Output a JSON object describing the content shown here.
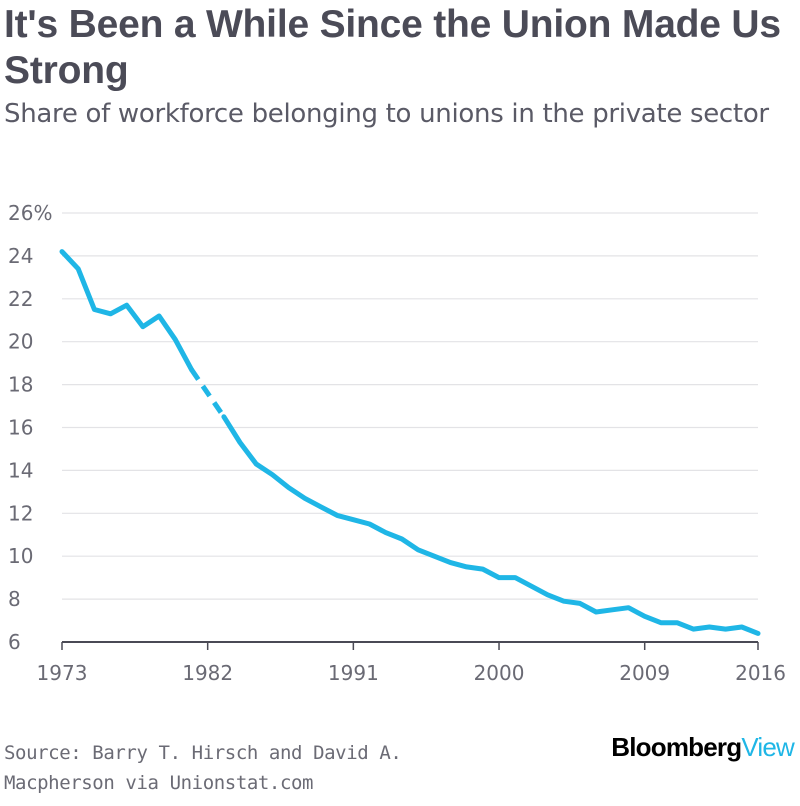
{
  "title": "It's Been a While Since the Union Made Us Strong",
  "subtitle": "Share of workforce belonging to unions in the private sector",
  "source": "Source: Barry T. Hirsch and David A. Macpherson via Unionstat.com",
  "logo": {
    "part1": "Bloomberg",
    "part2": "View"
  },
  "colors": {
    "line": "#1fb6e6",
    "grid": "#e3e3e6",
    "axis": "#4a4a55",
    "text": "#4b4b57"
  },
  "chart_data": {
    "type": "line",
    "title": "It's Been a While Since the Union Made Us Strong",
    "subtitle": "Share of workforce belonging to unions in the private sector",
    "xlim": [
      1973,
      2016
    ],
    "ylim": [
      6,
      26
    ],
    "x_ticks": [
      {
        "value": 1973,
        "label": "1973"
      },
      {
        "value": 1982,
        "label": "1982"
      },
      {
        "value": 1991,
        "label": "1991"
      },
      {
        "value": 2000,
        "label": "2000"
      },
      {
        "value": 2009,
        "label": "2009"
      },
      {
        "value": 2016,
        "label": "2016"
      }
    ],
    "y_ticks": [
      {
        "value": 26,
        "label": "26%"
      },
      {
        "value": 24,
        "label": "24"
      },
      {
        "value": 22,
        "label": "22"
      },
      {
        "value": 20,
        "label": "20"
      },
      {
        "value": 18,
        "label": "18"
      },
      {
        "value": 16,
        "label": "16"
      },
      {
        "value": 14,
        "label": "14"
      },
      {
        "value": 12,
        "label": "12"
      },
      {
        "value": 10,
        "label": "10"
      },
      {
        "value": 8,
        "label": "8"
      },
      {
        "value": 6,
        "label": "6"
      }
    ],
    "grid": true,
    "segments": [
      {
        "style": "solid",
        "points": [
          [
            1973,
            24.2
          ],
          [
            1974,
            23.4
          ],
          [
            1975,
            21.5
          ],
          [
            1976,
            21.3
          ],
          [
            1977,
            21.7
          ],
          [
            1978,
            20.7
          ],
          [
            1979,
            21.2
          ],
          [
            1980,
            20.1
          ],
          [
            1981,
            18.7
          ]
        ]
      },
      {
        "style": "dashed",
        "points": [
          [
            1981,
            18.7
          ],
          [
            1983,
            16.5
          ]
        ]
      },
      {
        "style": "solid",
        "points": [
          [
            1983,
            16.5
          ],
          [
            1984,
            15.3
          ],
          [
            1985,
            14.3
          ],
          [
            1986,
            13.8
          ],
          [
            1987,
            13.2
          ],
          [
            1988,
            12.7
          ],
          [
            1989,
            12.3
          ],
          [
            1990,
            11.9
          ],
          [
            1991,
            11.7
          ],
          [
            1992,
            11.5
          ],
          [
            1993,
            11.1
          ],
          [
            1994,
            10.8
          ],
          [
            1995,
            10.3
          ],
          [
            1996,
            10.0
          ],
          [
            1997,
            9.7
          ],
          [
            1998,
            9.5
          ],
          [
            1999,
            9.4
          ],
          [
            2000,
            9.0
          ],
          [
            2001,
            9.0
          ],
          [
            2002,
            8.6
          ],
          [
            2003,
            8.2
          ],
          [
            2004,
            7.9
          ],
          [
            2005,
            7.8
          ],
          [
            2006,
            7.4
          ],
          [
            2007,
            7.5
          ],
          [
            2008,
            7.6
          ],
          [
            2009,
            7.2
          ],
          [
            2010,
            6.9
          ],
          [
            2011,
            6.9
          ],
          [
            2012,
            6.6
          ],
          [
            2013,
            6.7
          ],
          [
            2014,
            6.6
          ],
          [
            2015,
            6.7
          ],
          [
            2016,
            6.4
          ]
        ]
      }
    ]
  }
}
